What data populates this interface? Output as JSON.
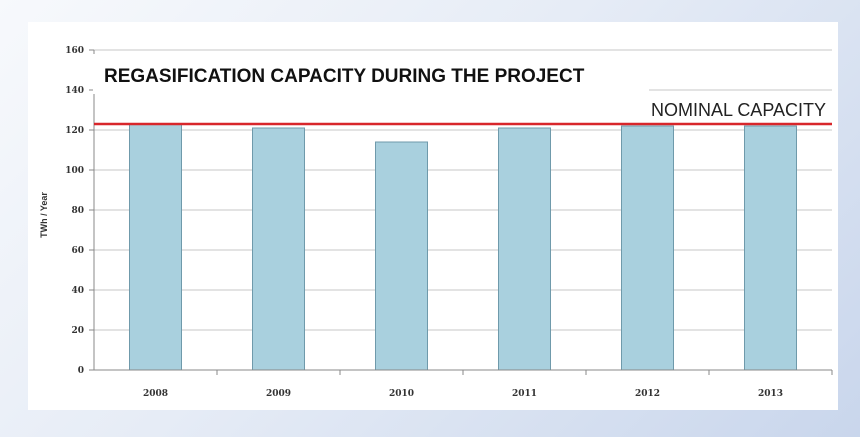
{
  "chart_data": {
    "type": "bar",
    "title": "REGASIFICATION CAPACITY DURING THE PROJECT",
    "ylabel": "TWh / Year",
    "xlabel": "",
    "categories": [
      "2008",
      "2009",
      "2010",
      "2011",
      "2012",
      "2013"
    ],
    "values": [
      123,
      121,
      114,
      121,
      122,
      122
    ],
    "ylim": [
      0,
      160
    ],
    "yticks": [
      0,
      20,
      40,
      60,
      80,
      100,
      120,
      140,
      160
    ],
    "grid": true,
    "reference_line": {
      "label": "NOMINAL CAPACITY",
      "value": 123,
      "color": "#d8262b"
    },
    "bar_color": "#a9d0de",
    "bar_stroke": "#6f9aab"
  }
}
